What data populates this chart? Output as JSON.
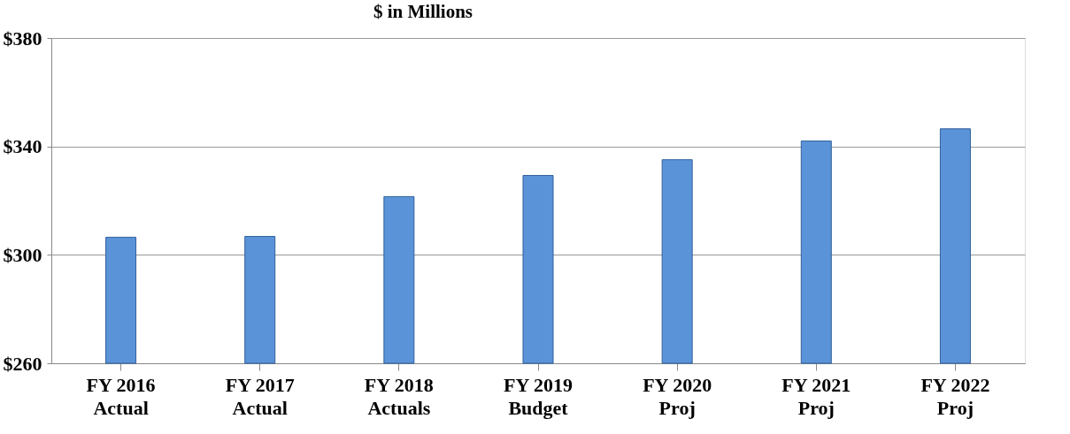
{
  "chart_data": {
    "type": "bar",
    "title": "$ in Millions",
    "categories": [
      "FY 2016\nActual",
      "FY 2017\nActual",
      "FY 2018\nActuals",
      "FY 2019\nBudget",
      "FY 2020\nProj",
      "FY 2021\nProj",
      "FY 2022\nProj"
    ],
    "values": [
      306.5,
      306.8,
      321.5,
      329.3,
      335.1,
      342,
      346.5
    ],
    "color": "#5b93d8",
    "ylim": [
      260,
      380
    ],
    "yticks": [
      {
        "value": 260,
        "label": "$260"
      },
      {
        "value": 300,
        "label": "$300"
      },
      {
        "value": 340,
        "label": "$340"
      },
      {
        "value": 380,
        "label": "$380"
      }
    ],
    "grid": "y"
  }
}
